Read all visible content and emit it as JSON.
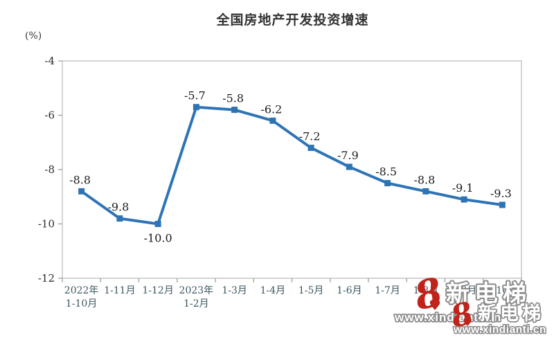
{
  "chart_data": {
    "type": "line",
    "title": "全国房地产开发投资增速",
    "unit_label": "(%)",
    "categories": [
      [
        "2022年",
        "1-10月"
      ],
      [
        "1-11月"
      ],
      [
        "1-12月"
      ],
      [
        "2023年",
        "1-2月"
      ],
      [
        "1-3月"
      ],
      [
        "1-4月"
      ],
      [
        "1-5月"
      ],
      [
        "1-6月"
      ],
      [
        "1-7月"
      ],
      [
        "1-8月"
      ],
      [
        "1-9月"
      ],
      [
        "1-10月"
      ]
    ],
    "values": [
      -8.8,
      -9.8,
      -10.0,
      -5.7,
      -5.8,
      -6.2,
      -7.2,
      -7.9,
      -8.5,
      -8.8,
      -9.1,
      -9.3
    ],
    "point_labels": [
      "-8.8",
      "-9.8",
      "-10.0",
      "-5.7",
      "-5.8",
      "-6.2",
      "-7.2",
      "-7.9",
      "-8.5",
      "-8.8",
      "-9.1",
      "-9.3"
    ],
    "labels_below_indices": [
      2
    ],
    "yticks": [
      "-4",
      "-6",
      "-8",
      "-10",
      "-12"
    ],
    "ytick_values": [
      -4,
      -6,
      -8,
      -10,
      -12
    ],
    "ylim": [
      -12,
      -4
    ],
    "grid": false,
    "legend_position": "none",
    "line_color": "#2E74B5",
    "marker": "square",
    "axis_color": "#b9bdc0",
    "tick_color": "#9aa0a3"
  },
  "watermark": {
    "brand_text": "新电梯",
    "url_text": "www.xindianti.cn",
    "logo_glyph": "8",
    "heart_glyph": "♥",
    "logo_color": "#bf2319",
    "outline_color": "#8a8a8a",
    "fill_color": "#ffffff"
  }
}
